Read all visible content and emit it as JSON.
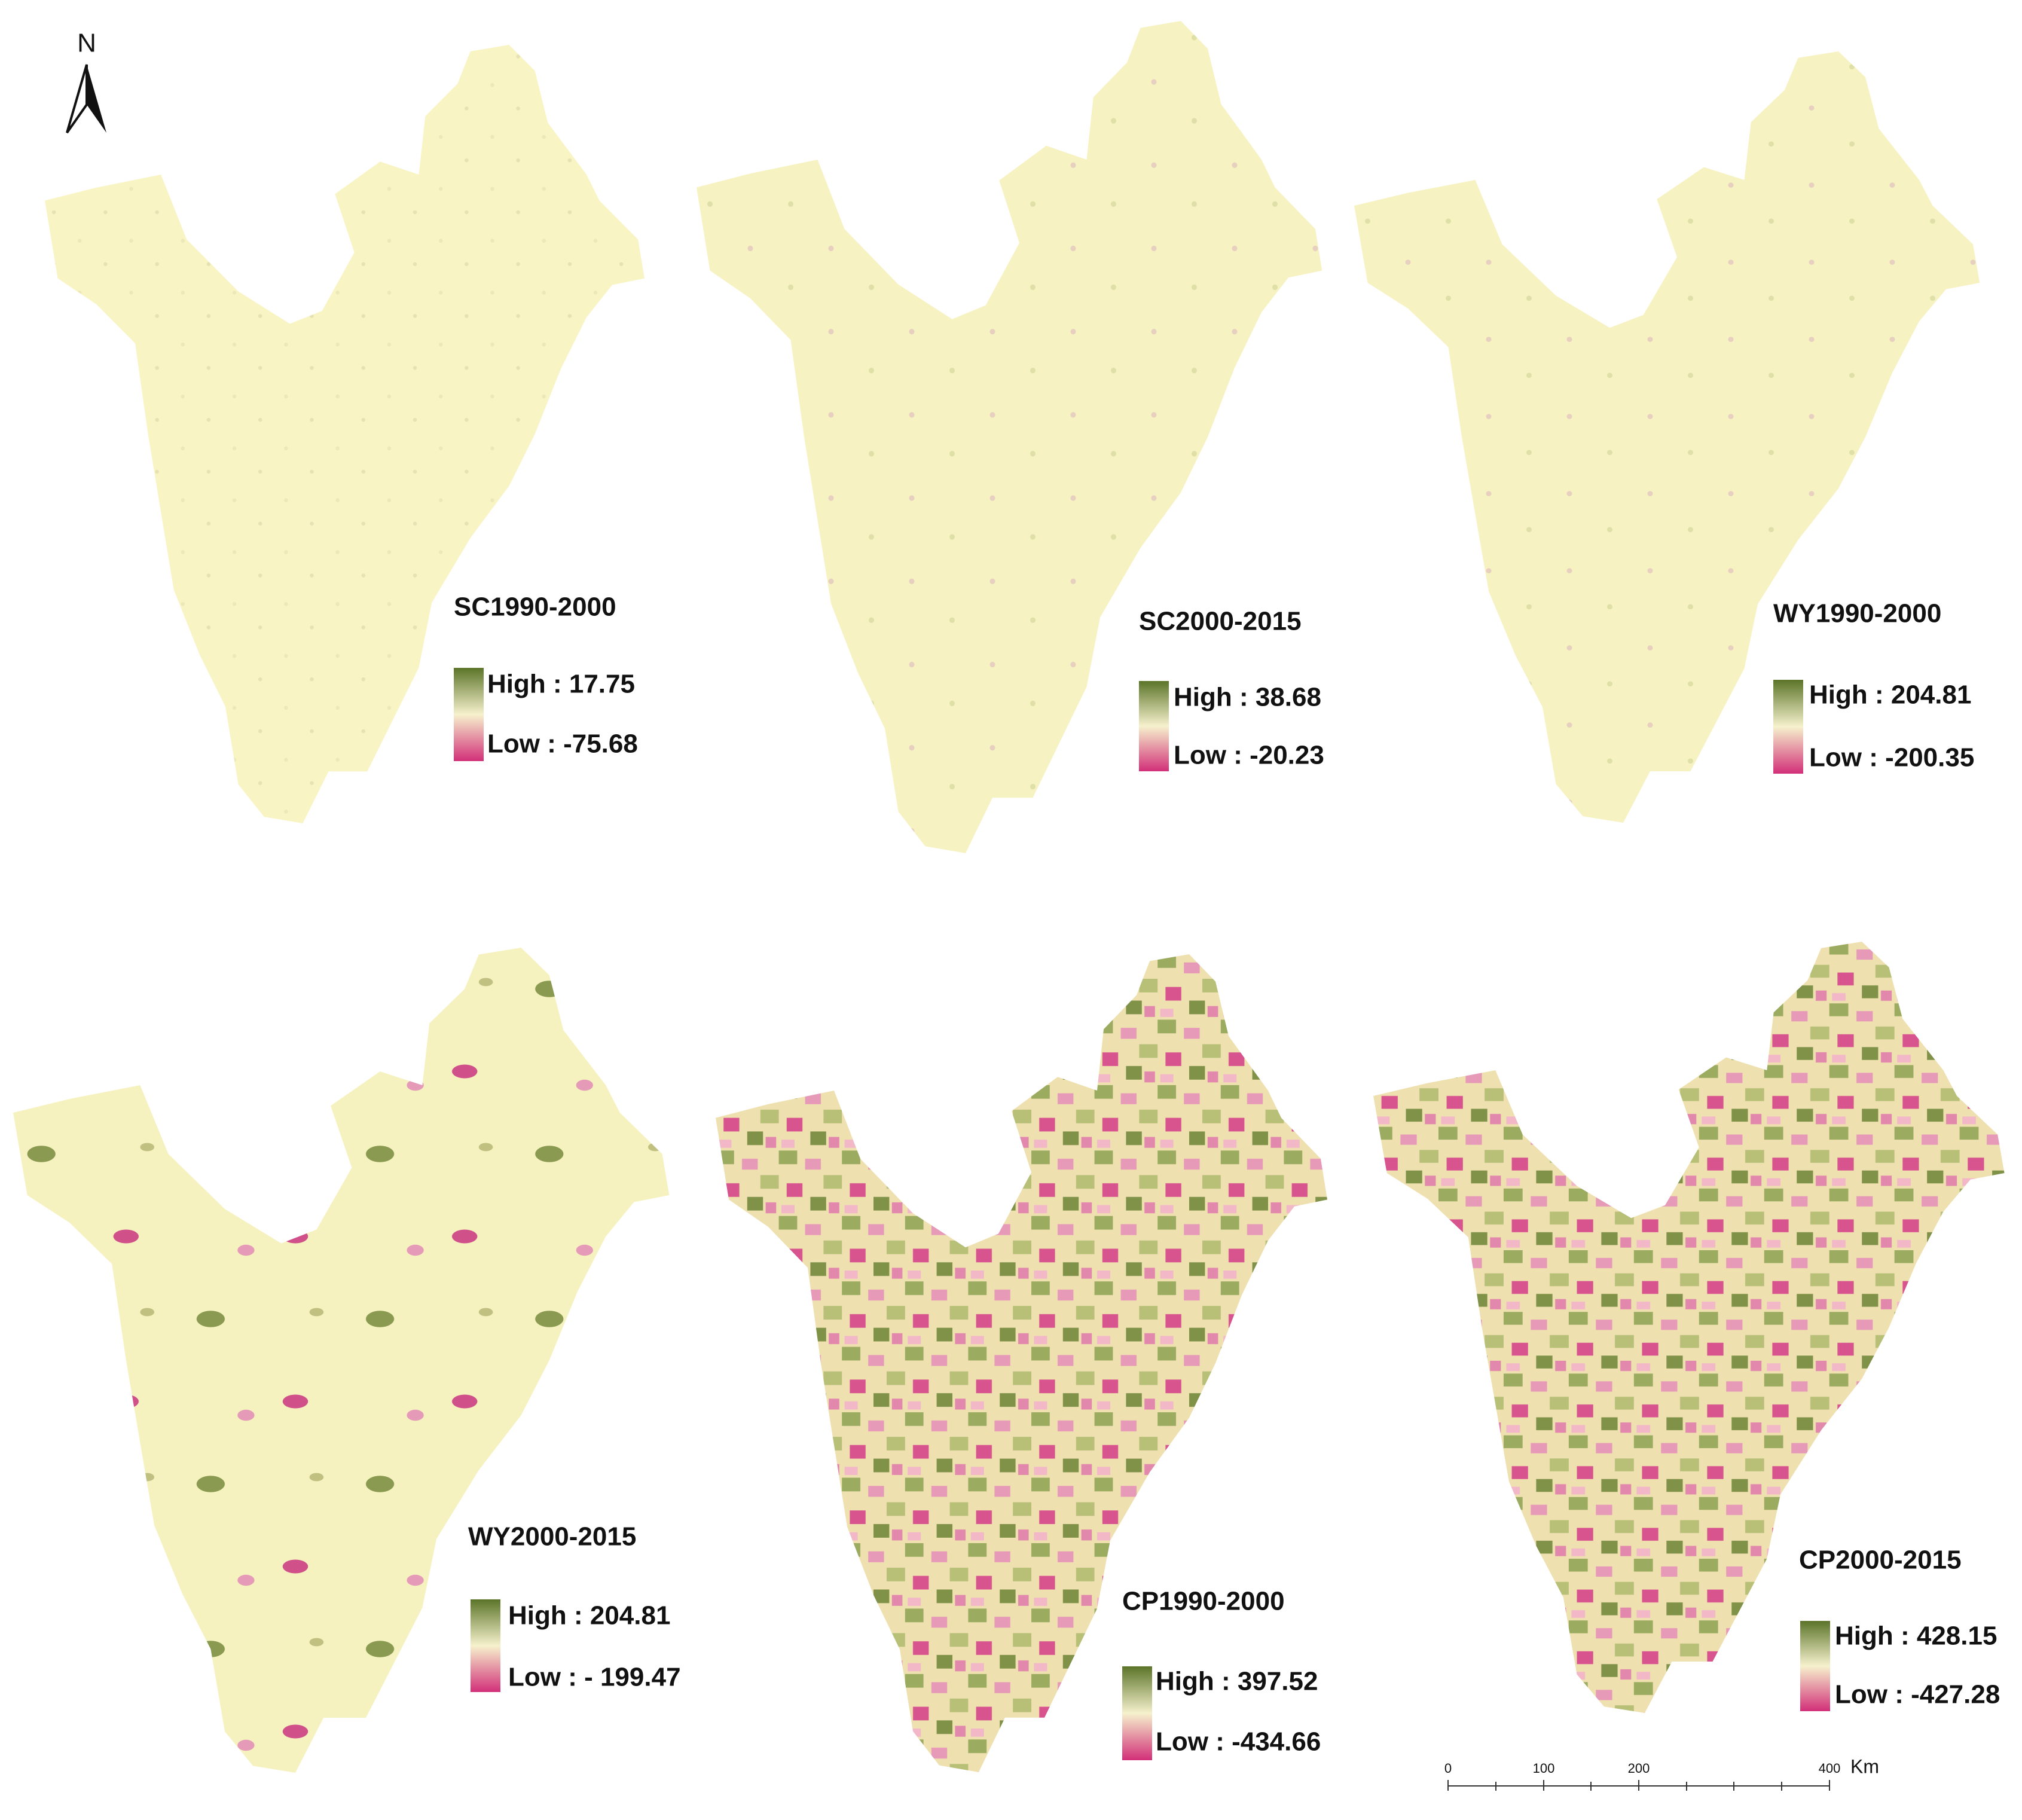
{
  "north": "N",
  "panels": [
    {
      "title": "SC1990-2000",
      "high": "High : 17.75",
      "low": "Low : -75.68"
    },
    {
      "title": "SC2000-2015",
      "high": "High : 38.68",
      "low": "Low : -20.23"
    },
    {
      "title": "WY1990-2000",
      "high": "High : 204.81",
      "low": "Low : -200.35"
    },
    {
      "title": "WY2000-2015",
      "high": "High : 204.81",
      "low": "Low : - 199.47"
    },
    {
      "title": "CP1990-2000",
      "high": "High : 397.52",
      "low": "Low : -434.66"
    },
    {
      "title": "CP2000-2015",
      "high": "High : 428.15",
      "low": "Low : -427.28"
    }
  ],
  "scale_bar": {
    "ticks": [
      "0",
      "100",
      "200",
      "400"
    ],
    "unit": "Km"
  }
}
